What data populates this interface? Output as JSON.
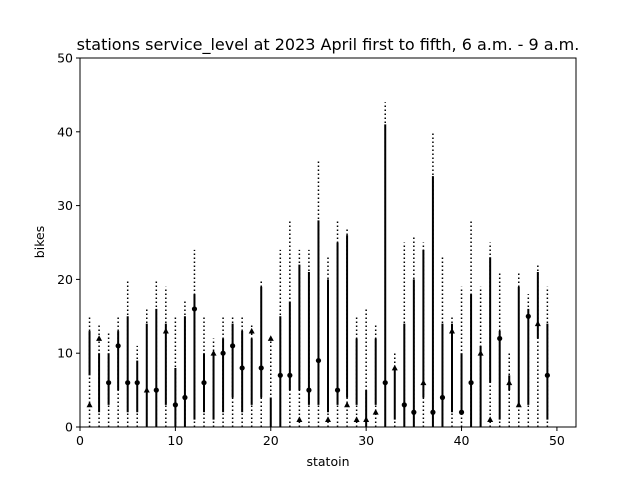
{
  "chart_data": {
    "type": "errorbar",
    "title": "stations service_level at 2023 April first to fifth, 6 a.m. - 9 a.m.",
    "xlabel": "statoin",
    "ylabel": "bikes",
    "xlim": [
      0,
      52
    ],
    "ylim": [
      0,
      50
    ],
    "xticks": [
      0,
      10,
      20,
      30,
      40,
      50
    ],
    "yticks": [
      0,
      10,
      20,
      30,
      40,
      50
    ],
    "grid": false,
    "colors": {
      "lines": "#000000",
      "markers": "#000000",
      "background": "#ffffff"
    },
    "notes": "Per station: thin dotted range (lo..hi), thick solid range (s_lo..s_hi), marker at value; marker shape circle or triangle.",
    "stations": [
      {
        "x": 1,
        "lo": 0,
        "hi": 15,
        "s_lo": 7,
        "s_hi": 13,
        "value": 3,
        "marker": "triangle"
      },
      {
        "x": 2,
        "lo": 0,
        "hi": 14,
        "s_lo": 2,
        "s_hi": 10,
        "value": 12,
        "marker": "triangle"
      },
      {
        "x": 3,
        "lo": 0,
        "hi": 13,
        "s_lo": 3,
        "s_hi": 10,
        "value": 6,
        "marker": "circle"
      },
      {
        "x": 4,
        "lo": 0,
        "hi": 15,
        "s_lo": 5,
        "s_hi": 13,
        "value": 11,
        "marker": "circle"
      },
      {
        "x": 5,
        "lo": 0,
        "hi": 20,
        "s_lo": 2,
        "s_hi": 15,
        "value": 6,
        "marker": "circle"
      },
      {
        "x": 6,
        "lo": 0,
        "hi": 11,
        "s_lo": 2,
        "s_hi": 9,
        "value": 6,
        "marker": "circle"
      },
      {
        "x": 7,
        "lo": 0,
        "hi": 16,
        "s_lo": 0,
        "s_hi": 14,
        "value": 5,
        "marker": "triangle"
      },
      {
        "x": 8,
        "lo": 0,
        "hi": 20,
        "s_lo": 0,
        "s_hi": 16,
        "value": 5,
        "marker": "circle"
      },
      {
        "x": 9,
        "lo": 0,
        "hi": 19,
        "s_lo": 3,
        "s_hi": 14,
        "value": 13,
        "marker": "triangle"
      },
      {
        "x": 10,
        "lo": 0,
        "hi": 15,
        "s_lo": 0,
        "s_hi": 8,
        "value": 3,
        "marker": "circle"
      },
      {
        "x": 11,
        "lo": 0,
        "hi": 17,
        "s_lo": 0,
        "s_hi": 15,
        "value": 4,
        "marker": "circle"
      },
      {
        "x": 12,
        "lo": 0,
        "hi": 24,
        "s_lo": 1,
        "s_hi": 18,
        "value": 16,
        "marker": "circle"
      },
      {
        "x": 13,
        "lo": 0,
        "hi": 15,
        "s_lo": 2,
        "s_hi": 10,
        "value": 6,
        "marker": "circle"
      },
      {
        "x": 14,
        "lo": 0,
        "hi": 12,
        "s_lo": 1,
        "s_hi": 10,
        "value": 10,
        "marker": "triangle"
      },
      {
        "x": 15,
        "lo": 0,
        "hi": 15,
        "s_lo": 2,
        "s_hi": 12,
        "value": 10,
        "marker": "circle"
      },
      {
        "x": 16,
        "lo": 0,
        "hi": 15,
        "s_lo": 4,
        "s_hi": 14,
        "value": 11,
        "marker": "circle"
      },
      {
        "x": 17,
        "lo": 0,
        "hi": 15,
        "s_lo": 2,
        "s_hi": 13,
        "value": 8,
        "marker": "circle"
      },
      {
        "x": 18,
        "lo": 0,
        "hi": 14,
        "s_lo": 3,
        "s_hi": 12,
        "value": 13,
        "marker": "triangle"
      },
      {
        "x": 19,
        "lo": 0,
        "hi": 20,
        "s_lo": 4,
        "s_hi": 19,
        "value": 8,
        "marker": "circle"
      },
      {
        "x": 20,
        "lo": 0,
        "hi": 12,
        "s_lo": 0,
        "s_hi": 4,
        "value": 12,
        "marker": "triangle"
      },
      {
        "x": 21,
        "lo": 0,
        "hi": 24,
        "s_lo": 0,
        "s_hi": 15,
        "value": 7,
        "marker": "circle"
      },
      {
        "x": 22,
        "lo": 0,
        "hi": 28,
        "s_lo": 5,
        "s_hi": 17,
        "value": 7,
        "marker": "circle"
      },
      {
        "x": 23,
        "lo": 0,
        "hi": 24,
        "s_lo": 5,
        "s_hi": 22,
        "value": 1,
        "marker": "triangle"
      },
      {
        "x": 24,
        "lo": 0,
        "hi": 24,
        "s_lo": 3,
        "s_hi": 21,
        "value": 5,
        "marker": "circle"
      },
      {
        "x": 25,
        "lo": 0,
        "hi": 36,
        "s_lo": 3,
        "s_hi": 28,
        "value": 9,
        "marker": "circle"
      },
      {
        "x": 26,
        "lo": 0,
        "hi": 23,
        "s_lo": 2,
        "s_hi": 20,
        "value": 1,
        "marker": "triangle"
      },
      {
        "x": 27,
        "lo": 0,
        "hi": 28,
        "s_lo": 3,
        "s_hi": 25,
        "value": 5,
        "marker": "circle"
      },
      {
        "x": 28,
        "lo": 0,
        "hi": 27,
        "s_lo": 4,
        "s_hi": 26,
        "value": 3,
        "marker": "triangle"
      },
      {
        "x": 29,
        "lo": 0,
        "hi": 15,
        "s_lo": 3,
        "s_hi": 12,
        "value": 1,
        "marker": "triangle"
      },
      {
        "x": 30,
        "lo": 0,
        "hi": 16,
        "s_lo": 0,
        "s_hi": 5,
        "value": 1,
        "marker": "triangle"
      },
      {
        "x": 31,
        "lo": 0,
        "hi": 14,
        "s_lo": 3,
        "s_hi": 12,
        "value": 2,
        "marker": "triangle"
      },
      {
        "x": 32,
        "lo": 0,
        "hi": 44,
        "s_lo": 0,
        "s_hi": 41,
        "value": 6,
        "marker": "circle"
      },
      {
        "x": 33,
        "lo": 0,
        "hi": 10,
        "s_lo": 1,
        "s_hi": 8,
        "value": 8,
        "marker": "triangle"
      },
      {
        "x": 34,
        "lo": 0,
        "hi": 25,
        "s_lo": 0,
        "s_hi": 14,
        "value": 3,
        "marker": "circle"
      },
      {
        "x": 35,
        "lo": 0,
        "hi": 26,
        "s_lo": 0,
        "s_hi": 20,
        "value": 2,
        "marker": "circle"
      },
      {
        "x": 36,
        "lo": 0,
        "hi": 25,
        "s_lo": 4,
        "s_hi": 24,
        "value": 6,
        "marker": "triangle"
      },
      {
        "x": 37,
        "lo": 0,
        "hi": 40,
        "s_lo": 0,
        "s_hi": 34,
        "value": 2,
        "marker": "circle"
      },
      {
        "x": 38,
        "lo": 0,
        "hi": 23,
        "s_lo": 0,
        "s_hi": 14,
        "value": 4,
        "marker": "circle"
      },
      {
        "x": 39,
        "lo": 0,
        "hi": 15,
        "s_lo": 2,
        "s_hi": 14,
        "value": 13,
        "marker": "triangle"
      },
      {
        "x": 40,
        "lo": 0,
        "hi": 19,
        "s_lo": 2,
        "s_hi": 10,
        "value": 2,
        "marker": "circle"
      },
      {
        "x": 41,
        "lo": 0,
        "hi": 28,
        "s_lo": 0,
        "s_hi": 18,
        "value": 6,
        "marker": "circle"
      },
      {
        "x": 42,
        "lo": 0,
        "hi": 19,
        "s_lo": 0,
        "s_hi": 11,
        "value": 10,
        "marker": "triangle"
      },
      {
        "x": 43,
        "lo": 0,
        "hi": 25,
        "s_lo": 6,
        "s_hi": 23,
        "value": 1,
        "marker": "triangle"
      },
      {
        "x": 44,
        "lo": 0,
        "hi": 21,
        "s_lo": 1,
        "s_hi": 13,
        "value": 12,
        "marker": "circle"
      },
      {
        "x": 45,
        "lo": 0,
        "hi": 10,
        "s_lo": 5,
        "s_hi": 7,
        "value": 6,
        "marker": "triangle"
      },
      {
        "x": 46,
        "lo": 0,
        "hi": 21,
        "s_lo": 3,
        "s_hi": 19,
        "value": 3,
        "marker": "triangle"
      },
      {
        "x": 47,
        "lo": 0,
        "hi": 18,
        "s_lo": 3,
        "s_hi": 16,
        "value": 15,
        "marker": "circle"
      },
      {
        "x": 48,
        "lo": 0,
        "hi": 22,
        "s_lo": 12,
        "s_hi": 21,
        "value": 14,
        "marker": "triangle"
      },
      {
        "x": 49,
        "lo": 0,
        "hi": 19,
        "s_lo": 1,
        "s_hi": 14,
        "value": 7,
        "marker": "circle"
      }
    ]
  }
}
